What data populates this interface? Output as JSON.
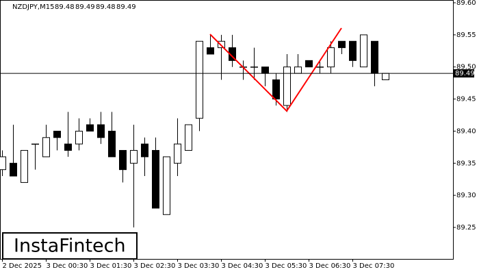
{
  "chart_data": {
    "type": "candlestick",
    "title": "NZDJPY,M15",
    "categories": [
      "2 Dec 2025",
      null,
      null,
      null,
      "3 Dec 00:30",
      null,
      null,
      null,
      "3 Dec 01:30",
      null,
      null,
      null,
      "3 Dec 02:30",
      null,
      null,
      null,
      "3 Dec 03:30",
      null,
      null,
      null,
      "3 Dec 04:30",
      null,
      null,
      null,
      "3 Dec 05:30",
      null,
      null,
      null,
      "3 Dec 06:30",
      null,
      null,
      null,
      "3 Dec 07:30",
      null,
      null,
      null
    ],
    "open": [
      89.34,
      89.35,
      89.32,
      89.38,
      89.36,
      89.4,
      89.38,
      89.38,
      89.41,
      89.41,
      89.4,
      89.37,
      89.35,
      89.38,
      89.37,
      89.27,
      89.35,
      89.37,
      89.42,
      89.53,
      89.53,
      89.53,
      89.5,
      89.5,
      89.5,
      89.48,
      89.44,
      89.49,
      89.51,
      89.5,
      89.5,
      89.54,
      89.54,
      89.5,
      89.54,
      89.48
    ],
    "high": [
      89.37,
      89.41,
      89.37,
      89.38,
      89.41,
      89.4,
      89.43,
      89.42,
      89.42,
      89.43,
      89.43,
      89.37,
      89.41,
      89.39,
      89.39,
      89.36,
      89.42,
      89.41,
      89.54,
      89.55,
      89.55,
      89.55,
      89.51,
      89.53,
      89.5,
      89.49,
      89.52,
      89.52,
      89.51,
      89.51,
      89.54,
      89.54,
      89.54,
      89.55,
      89.54,
      89.49
    ],
    "low": [
      89.33,
      89.33,
      89.32,
      89.34,
      89.36,
      89.37,
      89.36,
      89.37,
      89.4,
      89.38,
      89.36,
      89.32,
      89.25,
      89.33,
      89.28,
      89.27,
      89.33,
      89.37,
      89.4,
      89.52,
      89.48,
      89.5,
      89.48,
      89.48,
      89.47,
      89.44,
      89.43,
      89.49,
      89.5,
      89.49,
      89.49,
      89.52,
      89.5,
      89.5,
      89.47,
      89.48
    ],
    "close": [
      89.36,
      89.33,
      89.37,
      89.38,
      89.39,
      89.39,
      89.37,
      89.4,
      89.4,
      89.39,
      89.36,
      89.34,
      89.37,
      89.36,
      89.28,
      89.36,
      89.38,
      89.41,
      89.54,
      89.52,
      89.54,
      89.51,
      89.5,
      89.5,
      89.49,
      89.45,
      89.5,
      89.5,
      89.5,
      89.5,
      89.53,
      89.53,
      89.51,
      89.55,
      89.49,
      89.49
    ],
    "up_color": "#ffffff",
    "down_color": "#000000",
    "ylim": [
      89.2009,
      89.6043
    ],
    "yticks": [
      {
        "value": 89.6,
        "label": "89.60"
      },
      89.55,
      {
        "value": 89.5,
        "label": "89.50"
      },
      89.45,
      {
        "value": 89.4,
        "label": "89.40"
      },
      89.35,
      {
        "value": 89.3,
        "label": "89.30"
      },
      89.25
    ],
    "current_price": 89.49,
    "logo": "InstaFintech"
  }
}
